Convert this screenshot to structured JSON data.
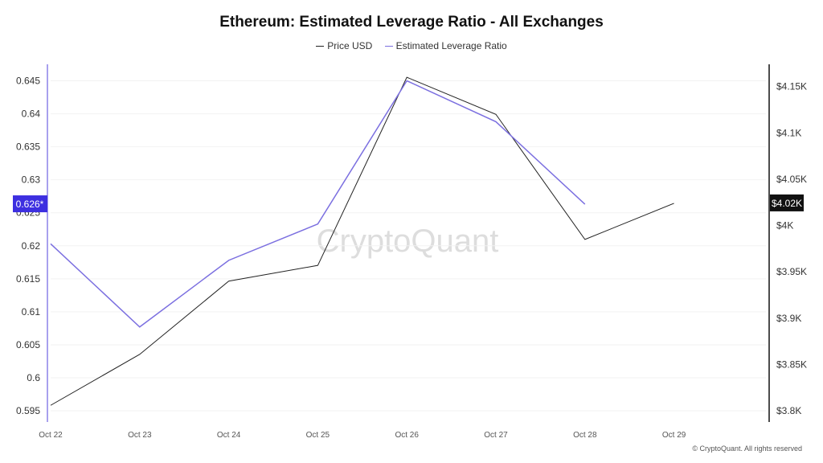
{
  "chart_data": {
    "type": "line",
    "title": "Ethereum: Estimated Leverage Ratio - All Exchanges",
    "categories": [
      "Oct 22",
      "Oct 23",
      "Oct 24",
      "Oct 25",
      "Oct 26",
      "Oct 27",
      "Oct 28",
      "Oct 29"
    ],
    "series": [
      {
        "name": "Price USD",
        "axis": "right",
        "color": "#222222",
        "values": [
          3806,
          3861,
          3940,
          3957,
          4160,
          4120,
          3985,
          4024
        ]
      },
      {
        "name": "Estimated Leverage Ratio",
        "axis": "left",
        "color": "#7b6fe0",
        "values": [
          0.6203,
          0.6077,
          0.6178,
          0.6233,
          0.645,
          0.6388,
          0.6263,
          null
        ]
      }
    ],
    "left_axis": {
      "range": [
        0.5933,
        0.6475
      ],
      "ticks": [
        "0.645",
        "0.64",
        "0.635",
        "0.63",
        "0.625",
        "0.62",
        "0.615",
        "0.61",
        "0.605",
        "0.6",
        "0.595"
      ],
      "tickvals": [
        0.645,
        0.64,
        0.635,
        0.63,
        0.625,
        0.62,
        0.615,
        0.61,
        0.605,
        0.6,
        0.595
      ],
      "current_label": "0.626*",
      "label_color": "#3d2fe0"
    },
    "right_axis": {
      "range": [
        3788,
        4174
      ],
      "ticks": [
        "$4.15K",
        "$4.1K",
        "$4.05K",
        "$4K",
        "$3.95K",
        "$3.9K",
        "$3.85K",
        "$3.8K"
      ],
      "tickvals": [
        4150,
        4100,
        4050,
        4000,
        3950,
        3900,
        3850,
        3800
      ],
      "current_label": "$4.02K",
      "label_color": "#111111"
    },
    "grid": true,
    "legend": "top-center",
    "watermark": "CryptoQuant"
  },
  "footer": {
    "copyright": "© CryptoQuant. All rights reserved"
  }
}
